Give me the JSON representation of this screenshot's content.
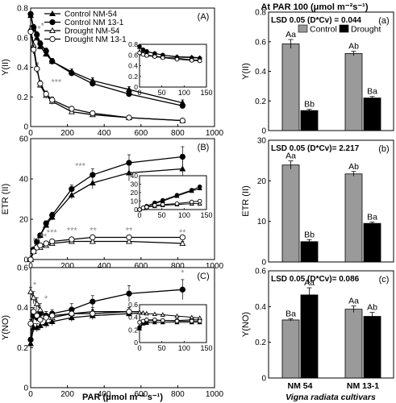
{
  "chart_data": [
    {
      "id": "A",
      "type": "line",
      "panel_label": "(A)",
      "ylabel": "Y(II)",
      "xlabel": "",
      "xlim": [
        0,
        1000
      ],
      "ylim": [
        0,
        0.8
      ],
      "xticks": [
        "0",
        "200",
        "400",
        "600",
        "800",
        "1000"
      ],
      "yticks": [
        "0",
        "0.2",
        "0.4",
        "0.6",
        "0.8"
      ],
      "x": [
        0,
        16,
        34,
        52,
        84,
        117,
        223,
        337,
        535,
        826
      ],
      "series": [
        {
          "name": "Control NM-54",
          "style": "filled-triangle",
          "values": [
            0.75,
            0.66,
            0.6,
            0.54,
            0.49,
            0.44,
            0.37,
            0.31,
            0.25,
            0.16
          ],
          "err": [
            0.01,
            0.02,
            0.02,
            0.02,
            0.02,
            0.02,
            0.02,
            0.02,
            0.02,
            0.02
          ]
        },
        {
          "name": "Control NM 13-1",
          "style": "filled-circle",
          "values": [
            0.76,
            0.67,
            0.62,
            0.56,
            0.51,
            0.44,
            0.36,
            0.29,
            0.22,
            0.14
          ],
          "err": [
            0.01,
            0.02,
            0.02,
            0.02,
            0.02,
            0.02,
            0.02,
            0.02,
            0.02,
            0.02
          ]
        },
        {
          "name": "Drought NM-54",
          "style": "open-triangle",
          "values": [
            0.66,
            0.55,
            0.4,
            0.28,
            0.21,
            0.17,
            0.1,
            0.08,
            0.06,
            0.04
          ],
          "err": [
            0.02,
            0.03,
            0.03,
            0.02,
            0.02,
            0.02,
            0.01,
            0.01,
            0.01,
            0.01
          ]
        },
        {
          "name": "Drought NM 13-1",
          "style": "open-circle",
          "values": [
            0.64,
            0.52,
            0.39,
            0.29,
            0.22,
            0.18,
            0.12,
            0.09,
            0.06,
            0.04
          ],
          "err": [
            0.02,
            0.03,
            0.03,
            0.02,
            0.02,
            0.02,
            0.01,
            0.01,
            0.01,
            0.01
          ]
        }
      ],
      "annotations": [
        {
          "text": "*",
          "x": 46,
          "y": 0.64
        },
        {
          "text": "*",
          "x": 65,
          "y": 0.66
        },
        {
          "text": "*",
          "x": 107,
          "y": 0.61
        },
        {
          "text": "***",
          "x": 140,
          "y": 0.28
        }
      ],
      "inset": {
        "xlim": [
          0,
          150
        ],
        "ylim": [
          0,
          0.8
        ],
        "xticks": [
          "0",
          "50",
          "100",
          "150"
        ],
        "yticks": [
          "0",
          "0.2",
          "0.4",
          "0.6",
          "0.8"
        ],
        "x": [
          0,
          8,
          16,
          34,
          52,
          84,
          117,
          135
        ],
        "series": [
          [
            0.75,
            0.69,
            0.66,
            0.63,
            0.6,
            0.57,
            0.56,
            0.55
          ],
          [
            0.76,
            0.7,
            0.67,
            0.63,
            0.6,
            0.56,
            0.55,
            0.54
          ],
          [
            0.66,
            0.63,
            0.6,
            0.58,
            0.56,
            0.54,
            0.51,
            0.5
          ],
          [
            0.64,
            0.61,
            0.59,
            0.57,
            0.55,
            0.52,
            0.5,
            0.49
          ]
        ]
      }
    },
    {
      "id": "B",
      "type": "line",
      "panel_label": "(B)",
      "ylabel": "ETR (II)",
      "xlabel": "",
      "xlim": [
        0,
        1000
      ],
      "ylim": [
        0,
        60
      ],
      "xticks": [
        "0",
        "200",
        "400",
        "600",
        "800",
        "1000"
      ],
      "yticks": [
        "0",
        "20",
        "40",
        "60"
      ],
      "x": [
        0,
        16,
        34,
        52,
        84,
        117,
        223,
        337,
        535,
        826
      ],
      "series": [
        {
          "name": "Control NM-54",
          "style": "filled-triangle",
          "values": [
            0,
            5,
            9,
            12,
            17,
            21,
            32,
            38,
            43,
            45
          ],
          "err": [
            0,
            0.5,
            0.8,
            1,
            1.2,
            1.5,
            2,
            3,
            4,
            5
          ]
        },
        {
          "name": "Control NM 13-1",
          "style": "filled-circle",
          "values": [
            0,
            5,
            9,
            12,
            18,
            22,
            35,
            42,
            48,
            51
          ],
          "err": [
            0,
            0.5,
            0.8,
            1,
            1.2,
            1.5,
            2,
            3,
            4,
            5
          ]
        },
        {
          "name": "Drought NM-54",
          "style": "open-triangle",
          "values": [
            0,
            4,
            6,
            6,
            7,
            8,
            9,
            9,
            9,
            8
          ],
          "err": [
            0,
            0.5,
            0.8,
            0.8,
            0.8,
            1,
            1,
            1,
            1,
            1
          ]
        },
        {
          "name": "Drought NM 13-1",
          "style": "open-circle",
          "values": [
            0,
            4,
            6,
            7,
            8,
            9,
            10,
            11,
            11,
            11
          ],
          "err": [
            0,
            0.5,
            0.8,
            0.8,
            0.8,
            1,
            1,
            1,
            1,
            1
          ]
        }
      ],
      "annotations": [
        {
          "text": "***",
          "x": 270,
          "y": 45
        },
        {
          "text": "**",
          "x": 30,
          "y": 8
        },
        {
          "text": "**",
          "x": 70,
          "y": 10
        },
        {
          "text": "***",
          "x": 115,
          "y": 12
        },
        {
          "text": "***",
          "x": 225,
          "y": 13
        },
        {
          "text": "**",
          "x": 340,
          "y": 13
        },
        {
          "text": "**",
          "x": 535,
          "y": 13
        },
        {
          "text": "**",
          "x": 826,
          "y": 12
        }
      ],
      "inset": {
        "xlim": [
          0,
          150
        ],
        "ylim": [
          0,
          40
        ],
        "xticks": [
          "0",
          "50",
          "100",
          "150"
        ],
        "yticks": [
          "0",
          "10",
          "20",
          "30",
          "40"
        ],
        "x": [
          0,
          8,
          16,
          34,
          52,
          84,
          117,
          135
        ],
        "series": [
          [
            0,
            2,
            4,
            7,
            10,
            16,
            22,
            25
          ],
          [
            0,
            2,
            4,
            8,
            11,
            17,
            23,
            27
          ],
          [
            0,
            1.5,
            3,
            4,
            5,
            6,
            7,
            7
          ],
          [
            0,
            2,
            3,
            5,
            6,
            7,
            9,
            10
          ]
        ]
      }
    },
    {
      "id": "C",
      "type": "line",
      "panel_label": "(C)",
      "ylabel": "Y(NO)",
      "xlabel": "PAR (μmol m⁻² s⁻¹)",
      "xlim": [
        0,
        1000
      ],
      "ylim": [
        0,
        0.6
      ],
      "xticks": [
        "0",
        "200",
        "400",
        "600",
        "800",
        "1000"
      ],
      "yticks": [
        "0",
        "0.2",
        "0.4",
        "0.6"
      ],
      "x": [
        0,
        16,
        34,
        52,
        84,
        117,
        223,
        337,
        535,
        826
      ],
      "series": [
        {
          "name": "Control NM-54",
          "style": "filled-triangle",
          "values": [
            0.22,
            0.3,
            0.3,
            0.31,
            0.32,
            0.33,
            0.35,
            0.36,
            0.37,
            0.38
          ],
          "err": [
            0.01,
            0.02,
            0.02,
            0.02,
            0.02,
            0.02,
            0.02,
            0.02,
            0.02,
            0.02
          ]
        },
        {
          "name": "Control NM 13-1",
          "style": "filled-circle",
          "values": [
            0.24,
            0.36,
            0.35,
            0.37,
            0.36,
            0.37,
            0.39,
            0.43,
            0.47,
            0.49
          ],
          "err": [
            0.01,
            0.02,
            0.02,
            0.02,
            0.02,
            0.02,
            0.03,
            0.03,
            0.04,
            0.05
          ]
        },
        {
          "name": "Drought NM-54",
          "style": "open-triangle",
          "values": [
            0.48,
            0.45,
            0.42,
            0.39,
            0.36,
            0.35,
            0.37,
            0.38,
            0.38,
            0.38
          ],
          "err": [
            0.02,
            0.03,
            0.03,
            0.03,
            0.02,
            0.02,
            0.02,
            0.02,
            0.02,
            0.02
          ]
        },
        {
          "name": "Drought NM 13-1",
          "style": "open-circle",
          "values": [
            0.32,
            0.38,
            0.36,
            0.34,
            0.35,
            0.36,
            0.37,
            0.37,
            0.38,
            0.38
          ],
          "err": [
            0.02,
            0.02,
            0.02,
            0.02,
            0.02,
            0.02,
            0.02,
            0.02,
            0.02,
            0.02
          ]
        }
      ],
      "annotations": [
        {
          "text": "*",
          "x": 22,
          "y": 0.5
        },
        {
          "text": "*",
          "x": 84,
          "y": 0.43
        },
        {
          "text": "*",
          "x": 826,
          "y": 0.56
        }
      ],
      "inset": {
        "xlim": [
          0,
          150
        ],
        "ylim": [
          0,
          0.6
        ],
        "xticks": [
          "0",
          "50",
          "100",
          "150"
        ],
        "yticks": [
          "0",
          "0.2",
          "0.4",
          "0.6"
        ],
        "x": [
          0,
          8,
          16,
          34,
          52,
          84,
          117,
          135
        ],
        "series": [
          [
            0.22,
            0.3,
            0.31,
            0.32,
            0.32,
            0.32,
            0.32,
            0.32
          ],
          [
            0.24,
            0.32,
            0.34,
            0.35,
            0.35,
            0.35,
            0.36,
            0.36
          ],
          [
            0.48,
            0.47,
            0.46,
            0.45,
            0.44,
            0.42,
            0.4,
            0.39
          ],
          [
            0.32,
            0.34,
            0.36,
            0.36,
            0.35,
            0.34,
            0.34,
            0.34
          ]
        ]
      }
    },
    {
      "id": "a",
      "type": "bar",
      "panel_label": "(a)",
      "ylabel": "Y(II)",
      "categories": [
        "NM 54",
        "NM 13-1"
      ],
      "ylim": [
        0,
        0.8
      ],
      "yticks": [
        "0",
        "0.2",
        "0.4",
        "0.6",
        "0.8"
      ],
      "lsd": "LSD 0.05 (D*Cv) = 0.044",
      "series": [
        {
          "name": "Control",
          "values": [
            0.585,
            0.52
          ],
          "err": [
            0.03,
            0.015
          ],
          "letters": [
            "Aa",
            "Ab"
          ]
        },
        {
          "name": "Drought",
          "values": [
            0.135,
            0.22
          ],
          "err": [
            0.008,
            0.01
          ],
          "letters": [
            "Bb",
            "Ba"
          ]
        }
      ]
    },
    {
      "id": "b",
      "type": "bar",
      "panel_label": "(b)",
      "ylabel": "ETR (II)",
      "categories": [
        "NM 54",
        "NM 13-1"
      ],
      "ylim": [
        0,
        30
      ],
      "yticks": [
        "0",
        "10",
        "20",
        "30"
      ],
      "lsd": "LSD 0.05 (D*Cv)= 2.217",
      "series": [
        {
          "name": "Control",
          "values": [
            23.9,
            21.7
          ],
          "err": [
            1.0,
            0.6
          ],
          "letters": [
            "Aa",
            "Ab"
          ]
        },
        {
          "name": "Drought",
          "values": [
            5.0,
            9.5
          ],
          "err": [
            0.5,
            0.3
          ],
          "letters": [
            "Bb",
            "Ba"
          ]
        }
      ]
    },
    {
      "id": "c",
      "type": "bar",
      "panel_label": "(c)",
      "ylabel": "Y(NO)",
      "categories": [
        "NM 54",
        "NM 13-1"
      ],
      "ylim": [
        0,
        0.6
      ],
      "yticks": [
        "0",
        "0.2",
        "0.4",
        "0.6"
      ],
      "lsd": "LSD 0.05 (D*Cv)= 0.086",
      "xlabel": "Vigna radiata cultivars",
      "series": [
        {
          "name": "Control",
          "values": [
            0.325,
            0.385
          ],
          "err": [
            0.006,
            0.018
          ],
          "letters": [
            "Ba",
            "Aa"
          ]
        },
        {
          "name": "Drought",
          "values": [
            0.465,
            0.345
          ],
          "err": [
            0.04,
            0.022
          ],
          "letters": [
            "Aa",
            "Ab"
          ]
        }
      ]
    }
  ],
  "right_header": "At PAR 100 (μmol m⁻²s⁻¹)",
  "colors": {
    "control_bar": "#9a9a9a",
    "drought_bar": "#000000",
    "axis": "#000000",
    "significance": "#888888"
  }
}
